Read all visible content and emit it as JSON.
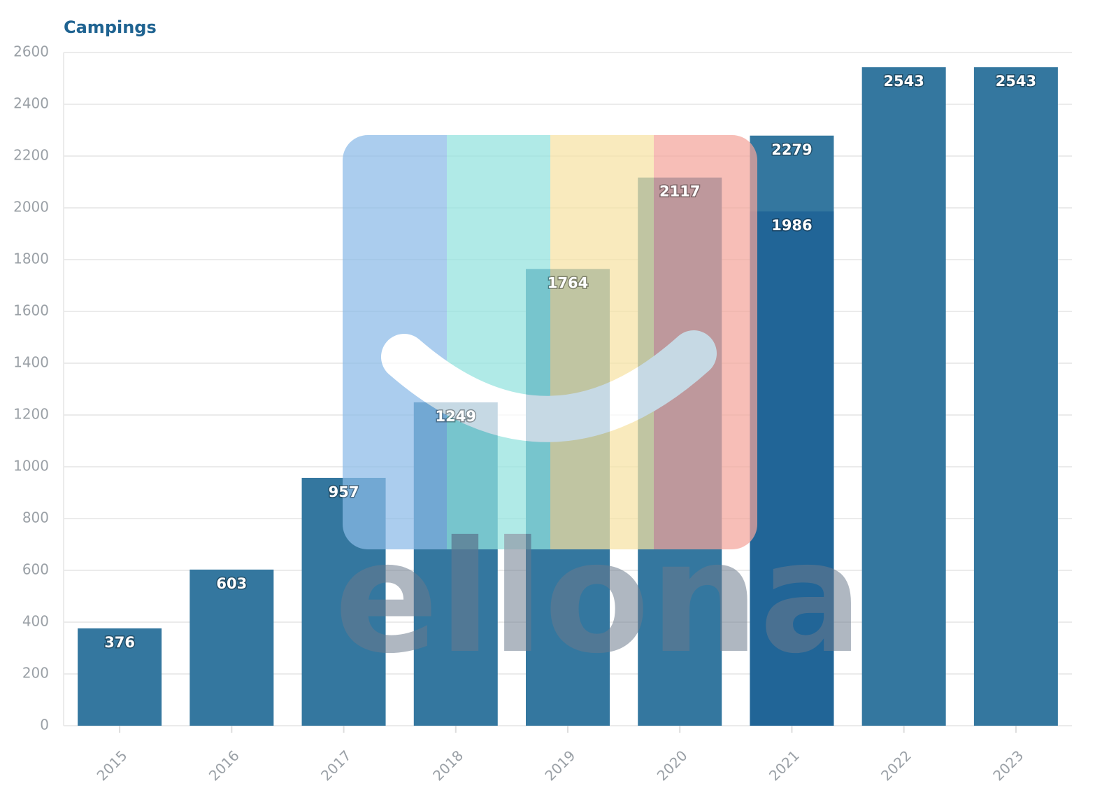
{
  "chart_data": {
    "type": "bar",
    "title": "Campings",
    "categories": [
      "2015",
      "2016",
      "2017",
      "2018",
      "2019",
      "2020",
      "2021",
      "2022",
      "2023"
    ],
    "values": [
      376,
      603,
      957,
      1249,
      1764,
      2117,
      2279,
      2543,
      2543
    ],
    "color": "#34779f",
    "overlay_values": [
      null,
      null,
      null,
      null,
      null,
      null,
      1986,
      null,
      null
    ],
    "overlay_color": "#216597",
    "ylim": [
      0,
      2600
    ],
    "yticks": [
      0,
      200,
      400,
      600,
      800,
      1000,
      1200,
      1400,
      1600,
      1800,
      2000,
      2200,
      2400,
      2600
    ],
    "grid": true
  },
  "watermark": "ellona"
}
